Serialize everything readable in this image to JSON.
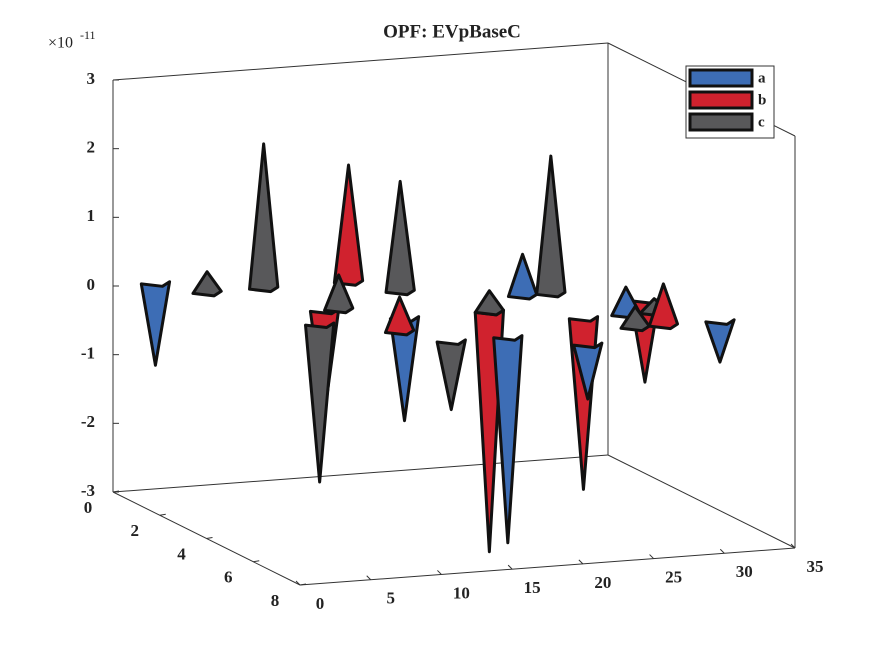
{
  "chart_data": {
    "type": "spike3d",
    "title": "OPF: EVpBaseC",
    "z_multiplier": "×10",
    "z_exponent": "-11",
    "xlim": [
      0,
      35
    ],
    "ylim": [
      0,
      8
    ],
    "zlim": [
      -3,
      3
    ],
    "xticks": [
      0,
      5,
      10,
      15,
      20,
      25,
      30,
      35
    ],
    "yticks": [
      0,
      2,
      4,
      6,
      8
    ],
    "zticks": [
      -3,
      -2,
      -1,
      0,
      1,
      2,
      3
    ],
    "legend": "upper right",
    "series": [
      {
        "name": "a",
        "color": "#3d6db5",
        "x": [
          3,
          14,
          24,
          28,
          18,
          22,
          33
        ],
        "y": [
          0,
          4,
          3,
          5,
          6,
          7,
          6
        ],
        "values": [
          -1.2,
          -1.5,
          0.6,
          0.4,
          -3.0,
          -0.8,
          -0.6
        ]
      },
      {
        "name": "b",
        "color": "#d0222e",
        "x": [
          15,
          10,
          12,
          20,
          25,
          31,
          29
        ],
        "y": [
          1,
          3,
          5,
          4,
          5,
          4,
          6
        ],
        "values": [
          1.7,
          -1.5,
          0.5,
          -3.5,
          -2.5,
          -1.2,
          0.6
        ]
      },
      {
        "name": "c",
        "color": "#58585a",
        "x": [
          9,
          5,
          17,
          26,
          11,
          20,
          8,
          30,
          27,
          14
        ],
        "y": [
          1,
          1,
          2,
          3,
          3,
          4,
          4,
          5,
          6,
          6
        ],
        "values": [
          2.1,
          0.3,
          1.6,
          2.0,
          0.5,
          0.3,
          -2.3,
          0.2,
          0.3,
          -1.0
        ]
      }
    ]
  }
}
